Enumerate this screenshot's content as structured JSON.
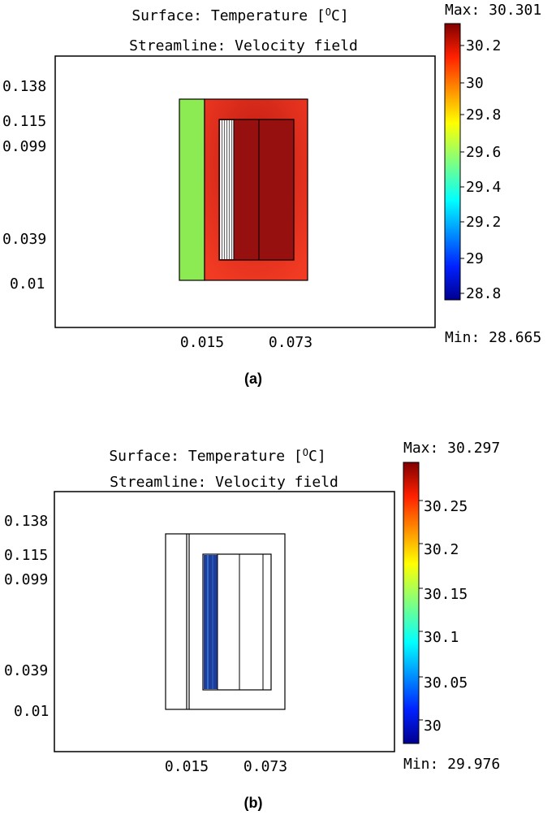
{
  "panels": [
    {
      "title_line1": "Surface: Temperature [",
      "title_unit_sup": "O",
      "title_unit_tail": "C]",
      "title_line2": "Streamline: Velocity field",
      "y_ticks": [
        "0.138",
        "0.115",
        "0.099",
        "0.039",
        "0.01"
      ],
      "x_ticks": [
        "0.015",
        "0.073"
      ],
      "colorbar": {
        "max_text": "Max: 30.301",
        "min_text": "Min: 28.665",
        "ticks": [
          "30.2",
          "30",
          "29.8",
          "29.6",
          "29.4",
          "29.2",
          "29",
          "28.8"
        ]
      },
      "caption": "(a)"
    },
    {
      "title_line1": "Surface: Temperature [",
      "title_unit_sup": "O",
      "title_unit_tail": "C]",
      "title_line2": "Streamline: Velocity field",
      "y_ticks": [
        "0.138",
        "0.115",
        "0.099",
        "0.039",
        "0.01"
      ],
      "x_ticks": [
        "0.015",
        "0.073"
      ],
      "colorbar": {
        "max_text": "Max: 30.297",
        "min_text": "Min: 29.976",
        "ticks": [
          "30.25",
          "30.2",
          "30.15",
          "30.1",
          "30.05",
          "30"
        ]
      },
      "caption": "(b)"
    }
  ],
  "colors": {
    "hot_red": "#ee3322",
    "dark_red": "#9a0e0e",
    "green_strip": "#8cea52",
    "cold_blue": "#1e3c9a"
  }
}
